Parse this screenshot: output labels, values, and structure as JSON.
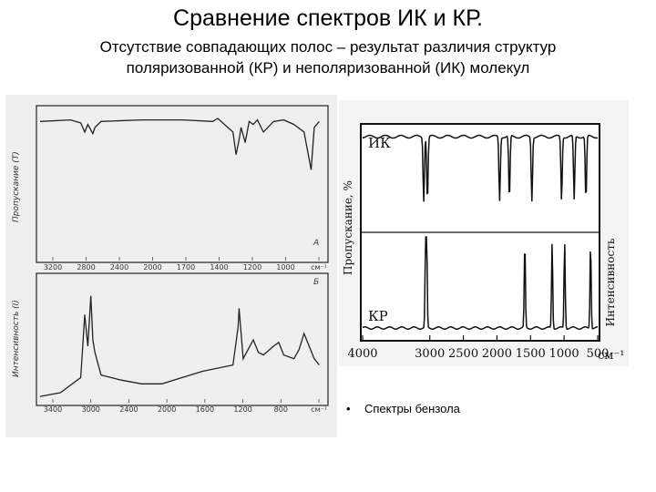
{
  "title": "Сравнение спектров ИК и КР.",
  "subtitle_line1": "Отсутствие совпадающих полос – результат различия структур",
  "subtitle_line2": "поляризованной (КР) и неполяризованной (ИК) молекул",
  "bullet": "•",
  "caption": "Спектры бензола",
  "colors": {
    "paper": "#efefef",
    "ink": "#1f1f1f",
    "panel_bg": "#f4f4f4"
  },
  "chart_data": [
    {
      "type": "line",
      "title": "",
      "ylabel": "Пропускание (T)",
      "top_label": "А",
      "x_ticks": [
        "3200",
        "2800",
        "2400",
        "2000",
        "1700",
        "1400",
        "1200",
        "1000",
        "см⁻¹"
      ],
      "xlim": [
        3400,
        600
      ],
      "series": [
        {
          "name": "",
          "x": [
            3400,
            3100,
            3050,
            3000,
            2960,
            2930,
            2880,
            2860,
            2800,
            2400,
            2000,
            1700,
            1650,
            1500,
            1470,
            1440,
            1420,
            1380,
            1340,
            1300,
            1260,
            1200,
            1100,
            1000,
            900,
            800,
            730,
            700,
            650
          ],
          "values": [
            92,
            93,
            92,
            91,
            85,
            90,
            84,
            88,
            92,
            93,
            93,
            92,
            94,
            85,
            70,
            80,
            88,
            78,
            92,
            90,
            93,
            85,
            92,
            93,
            90,
            85,
            60,
            88,
            92
          ]
        }
      ]
    },
    {
      "type": "line",
      "title": "",
      "ylabel": "Интенсивность (I)",
      "top_label": "Б",
      "x_ticks": [
        "3400",
        "3000",
        "2400",
        "2000",
        "1600",
        "1200",
        "800",
        "см⁻¹"
      ],
      "xlim": [
        3400,
        600
      ],
      "series": [
        {
          "name": "",
          "x": [
            3400,
            3200,
            3000,
            2960,
            2930,
            2900,
            2880,
            2860,
            2800,
            2600,
            2400,
            2200,
            2000,
            1800,
            1500,
            1450,
            1440,
            1400,
            1300,
            1250,
            1200,
            1100,
            1050,
            1000,
            900,
            850,
            800,
            700,
            650
          ],
          "values": [
            5,
            8,
            20,
            70,
            45,
            85,
            50,
            40,
            22,
            18,
            15,
            15,
            20,
            25,
            30,
            60,
            75,
            35,
            50,
            40,
            38,
            45,
            48,
            38,
            35,
            42,
            55,
            35,
            30
          ]
        }
      ]
    },
    {
      "type": "line",
      "title": "",
      "ylabel": "Пропускание, %",
      "y2label": "Интенсивность",
      "series_labels": [
        "ИК",
        "КР"
      ],
      "x_ticks": [
        "4000",
        "3000",
        "2500",
        "2000",
        "1500",
        "1000",
        "500"
      ],
      "x_unit": "см⁻¹",
      "xlim": [
        4000,
        500
      ],
      "ir_bands": [
        3090,
        3035,
        1960,
        1815,
        1480,
        1038,
        850,
        675
      ],
      "raman_bands": [
        3062,
        3047,
        1585,
        1178,
        992,
        606
      ]
    }
  ]
}
